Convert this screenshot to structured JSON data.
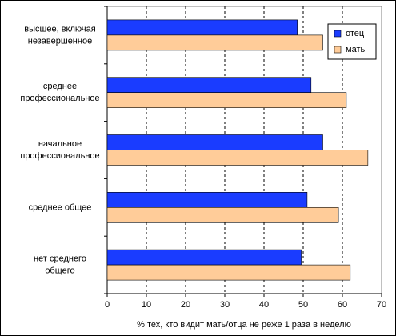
{
  "chart_data": {
    "type": "hbar",
    "x_label": "% тех, кто видит мать/отца не реже 1 раза в неделю",
    "categories": [
      "высшее, включая\nнезавершенное",
      "среднее\nпрофессиональное",
      "начальное\nпрофессиональное",
      "среднее общее",
      "нет среднего\nобщего"
    ],
    "series": [
      {
        "name": "отец",
        "color": "#1a3cff",
        "values": [
          48.5,
          52,
          55,
          51,
          49.5
        ]
      },
      {
        "name": "мать",
        "color": "#ffcc99",
        "values": [
          55,
          61,
          66.5,
          59,
          62
        ]
      }
    ],
    "xlim": [
      0,
      70
    ],
    "xticks": [
      0,
      10,
      20,
      30,
      40,
      50,
      60,
      70
    ],
    "grid": true,
    "legend": "top-right"
  }
}
